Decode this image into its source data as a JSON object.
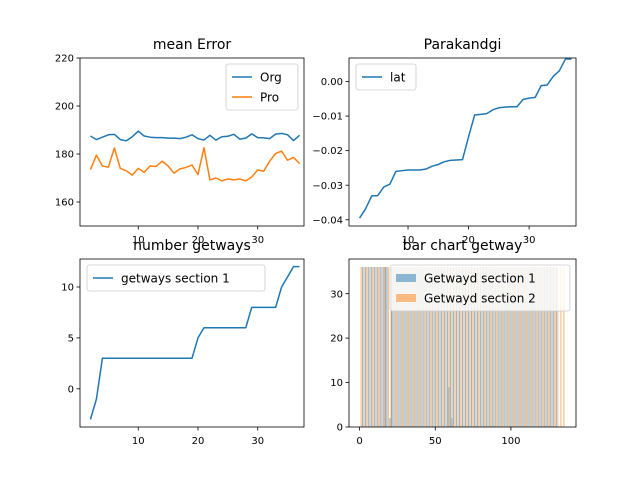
{
  "chart_data": [
    {
      "type": "line",
      "title": "mean Error",
      "xlabel": "",
      "ylabel": "",
      "xlim": [
        0.25,
        37.75
      ],
      "ylim": [
        150,
        220
      ],
      "x_ticks": [
        10,
        20,
        30
      ],
      "y_ticks": [
        160,
        180,
        200,
        220
      ],
      "legend": "top-right",
      "series": [
        {
          "name": "Org",
          "color": "#1f77b4",
          "x": [
            2,
            3,
            4,
            5,
            6,
            7,
            8,
            9,
            10,
            11,
            12,
            13,
            14,
            15,
            16,
            17,
            18,
            19,
            20,
            21,
            22,
            23,
            24,
            25,
            26,
            27,
            28,
            29,
            30,
            31,
            32,
            33,
            34,
            35,
            36,
            37
          ],
          "values": [
            187.5,
            186,
            187,
            188,
            188.2,
            186,
            185.5,
            187.2,
            189.5,
            187.5,
            187,
            186.8,
            186.8,
            186.6,
            186.6,
            186.4,
            187,
            188,
            186.4,
            185.8,
            187.8,
            185.8,
            187.2,
            187.4,
            188.2,
            186.2,
            186.6,
            188.4,
            186.8,
            186.7,
            186.4,
            188.3,
            188.6,
            188,
            185.6,
            187.8
          ]
        },
        {
          "name": "Pro",
          "color": "#ff7f0e",
          "x": [
            2,
            3,
            4,
            5,
            6,
            7,
            8,
            9,
            10,
            11,
            12,
            13,
            14,
            15,
            16,
            17,
            18,
            19,
            20,
            21,
            22,
            23,
            24,
            25,
            26,
            27,
            28,
            29,
            30,
            31,
            32,
            33,
            34,
            35,
            36,
            37
          ],
          "values": [
            173.5,
            179.5,
            175,
            174.5,
            182.5,
            174,
            173,
            171.2,
            174,
            172.4,
            175,
            174.8,
            177,
            175,
            172,
            173.8,
            174.4,
            175.4,
            171.4,
            182.6,
            169.2,
            170,
            168.8,
            169.6,
            169.2,
            169.6,
            168.8,
            170.4,
            173.4,
            172.8,
            177,
            180.2,
            181.2,
            177.4,
            178.6,
            176
          ]
        }
      ]
    },
    {
      "type": "line",
      "title": "Parakandgi",
      "xlabel": "",
      "ylabel": "",
      "xlim": [
        0.25,
        37.75
      ],
      "ylim": [
        -0.0418,
        0.0068
      ],
      "x_ticks": [
        10,
        20,
        30
      ],
      "y_ticks": [
        -0.04,
        -0.03,
        -0.02,
        -0.01,
        0.0
      ],
      "y_tick_labels": [
        "−0.04",
        "−0.03",
        "−0.02",
        "−0.01",
        "0.00"
      ],
      "legend": "top-left",
      "series": [
        {
          "name": "lat",
          "color": "#1f77b4",
          "x": [
            2,
            3,
            4,
            5,
            6,
            7,
            8,
            9,
            10,
            11,
            12,
            13,
            14,
            15,
            16,
            17,
            18,
            19,
            20,
            21,
            22,
            23,
            24,
            25,
            26,
            27,
            28,
            29,
            30,
            31,
            32,
            33,
            34,
            35,
            36,
            37
          ],
          "values": [
            -0.0395,
            -0.0368,
            -0.0331,
            -0.033,
            -0.0305,
            -0.0297,
            -0.026,
            -0.0258,
            -0.0256,
            -0.0256,
            -0.0256,
            -0.0253,
            -0.0245,
            -0.024,
            -0.0232,
            -0.0228,
            -0.0227,
            -0.0226,
            -0.016,
            -0.0097,
            -0.0095,
            -0.0093,
            -0.0082,
            -0.0076,
            -0.0074,
            -0.0073,
            -0.0073,
            -0.0052,
            -0.0048,
            -0.0046,
            -0.0012,
            -0.001,
            0.0015,
            0.0031,
            0.0065,
            0.0065
          ]
        }
      ]
    },
    {
      "type": "line",
      "title": "number getways",
      "xlabel": "",
      "ylabel": "",
      "xlim": [
        0.25,
        37.75
      ],
      "ylim": [
        -3.75,
        12.75
      ],
      "x_ticks": [
        10,
        20,
        30
      ],
      "y_ticks": [
        0,
        5,
        10
      ],
      "legend": "top-left",
      "series": [
        {
          "name": "getways section 1",
          "color": "#1f77b4",
          "x": [
            2,
            3,
            4,
            5,
            6,
            7,
            8,
            9,
            10,
            11,
            12,
            13,
            14,
            15,
            16,
            17,
            18,
            19,
            20,
            21,
            22,
            23,
            24,
            25,
            26,
            27,
            28,
            29,
            30,
            31,
            32,
            33,
            34,
            35,
            36,
            37
          ],
          "values": [
            -3,
            -1,
            3,
            3,
            3,
            3,
            3,
            3,
            3,
            3,
            3,
            3,
            3,
            3,
            3,
            3,
            3,
            3,
            5,
            6,
            6,
            6,
            6,
            6,
            6,
            6,
            6,
            8,
            8,
            8,
            8,
            8,
            10,
            11,
            12,
            12
          ]
        }
      ]
    },
    {
      "type": "bar",
      "title": "bar chart getway",
      "xlabel": "",
      "ylabel": "",
      "xlim": [
        -7,
        143
      ],
      "ylim": [
        0,
        37.8
      ],
      "x_ticks": [
        0,
        50,
        100
      ],
      "y_ticks": [
        0,
        10,
        20,
        30
      ],
      "legend": "top-right",
      "series": [
        {
          "name": "Getwayd section 1",
          "color": "#1f77b4",
          "opacity": 0.5,
          "x": [
            2,
            4,
            6,
            8,
            10,
            12,
            14,
            16,
            17,
            18,
            20,
            21,
            22,
            24,
            26,
            28,
            30,
            32,
            34,
            36,
            38,
            40,
            42,
            44,
            46,
            48,
            50,
            52,
            54,
            56,
            58,
            59,
            60,
            61,
            62,
            64,
            66,
            68,
            70,
            72,
            74,
            76,
            78,
            80,
            82,
            84,
            86,
            88,
            90,
            92,
            94,
            96,
            98,
            100,
            102,
            104,
            106,
            108,
            110,
            112,
            114,
            116,
            118,
            120,
            122,
            124,
            126,
            128,
            130
          ],
          "values": [
            36,
            36,
            36,
            36,
            36,
            36,
            36,
            36,
            36,
            36,
            2,
            36,
            36,
            36,
            36,
            36,
            36,
            36,
            36,
            36,
            36,
            36,
            36,
            36,
            36,
            36,
            36,
            36,
            36,
            36,
            36,
            9,
            36,
            2,
            36,
            36,
            36,
            36,
            36,
            36,
            36,
            36,
            36,
            36,
            36,
            36,
            36,
            36,
            36,
            36,
            36,
            36,
            36,
            36,
            36,
            36,
            36,
            36,
            36,
            36,
            36,
            36,
            36,
            36,
            36,
            36,
            36,
            36,
            36
          ]
        },
        {
          "name": "Getwayd section 2",
          "color": "#ff7f0e",
          "opacity": 0.5,
          "x": [
            1,
            3,
            5,
            7,
            9,
            11,
            13,
            15,
            17,
            19,
            21,
            23,
            25,
            27,
            29,
            31,
            33,
            35,
            37,
            39,
            41,
            43,
            45,
            47,
            49,
            51,
            53,
            55,
            57,
            59,
            61,
            63,
            65,
            67,
            69,
            71,
            73,
            75,
            77,
            79,
            81,
            83,
            85,
            87,
            89,
            91,
            93,
            95,
            97,
            99,
            101,
            103,
            105,
            107,
            109,
            111,
            113,
            115,
            117,
            119,
            121,
            123,
            125,
            127,
            129,
            131,
            133,
            135
          ],
          "values": [
            36,
            36,
            36,
            36,
            36,
            36,
            36,
            36,
            36,
            36,
            36,
            36,
            36,
            36,
            36,
            36,
            36,
            36,
            36,
            36,
            36,
            36,
            36,
            36,
            36,
            36,
            36,
            36,
            36,
            36,
            36,
            36,
            36,
            36,
            36,
            36,
            36,
            36,
            36,
            36,
            36,
            36,
            36,
            36,
            36,
            36,
            36,
            36,
            36,
            36,
            36,
            36,
            36,
            36,
            36,
            36,
            36,
            36,
            36,
            36,
            36,
            36,
            36,
            36,
            36,
            36,
            36,
            36
          ]
        }
      ]
    }
  ]
}
